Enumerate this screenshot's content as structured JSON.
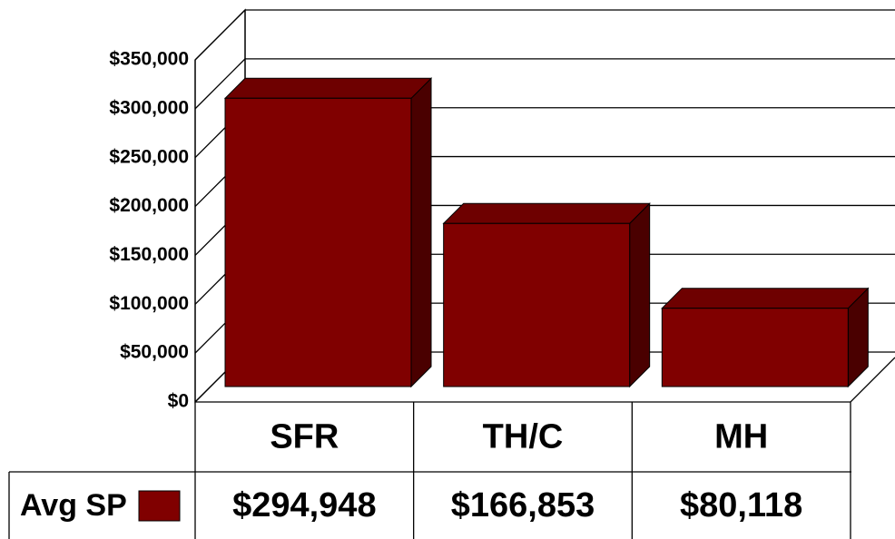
{
  "chart_data": {
    "type": "bar3d",
    "categories": [
      "SFR",
      "TH/C",
      "MH"
    ],
    "series": [
      {
        "name": "Avg SP",
        "color": "#800000",
        "values": [
          294948,
          166853,
          80118
        ],
        "value_labels": [
          "$294,948",
          "$166,853",
          "$80,118"
        ]
      }
    ],
    "ylim": [
      0,
      350000
    ],
    "yticks": [
      {
        "value": 0,
        "label": "$0"
      },
      {
        "value": 50000,
        "label": "$50,000"
      },
      {
        "value": 100000,
        "label": "$100,000"
      },
      {
        "value": 150000,
        "label": "$150,000"
      },
      {
        "value": 200000,
        "label": "$200,000"
      },
      {
        "value": 250000,
        "label": "$250,000"
      },
      {
        "value": 300000,
        "label": "$300,000"
      },
      {
        "value": 350000,
        "label": "$350,000"
      }
    ],
    "grid": true
  }
}
